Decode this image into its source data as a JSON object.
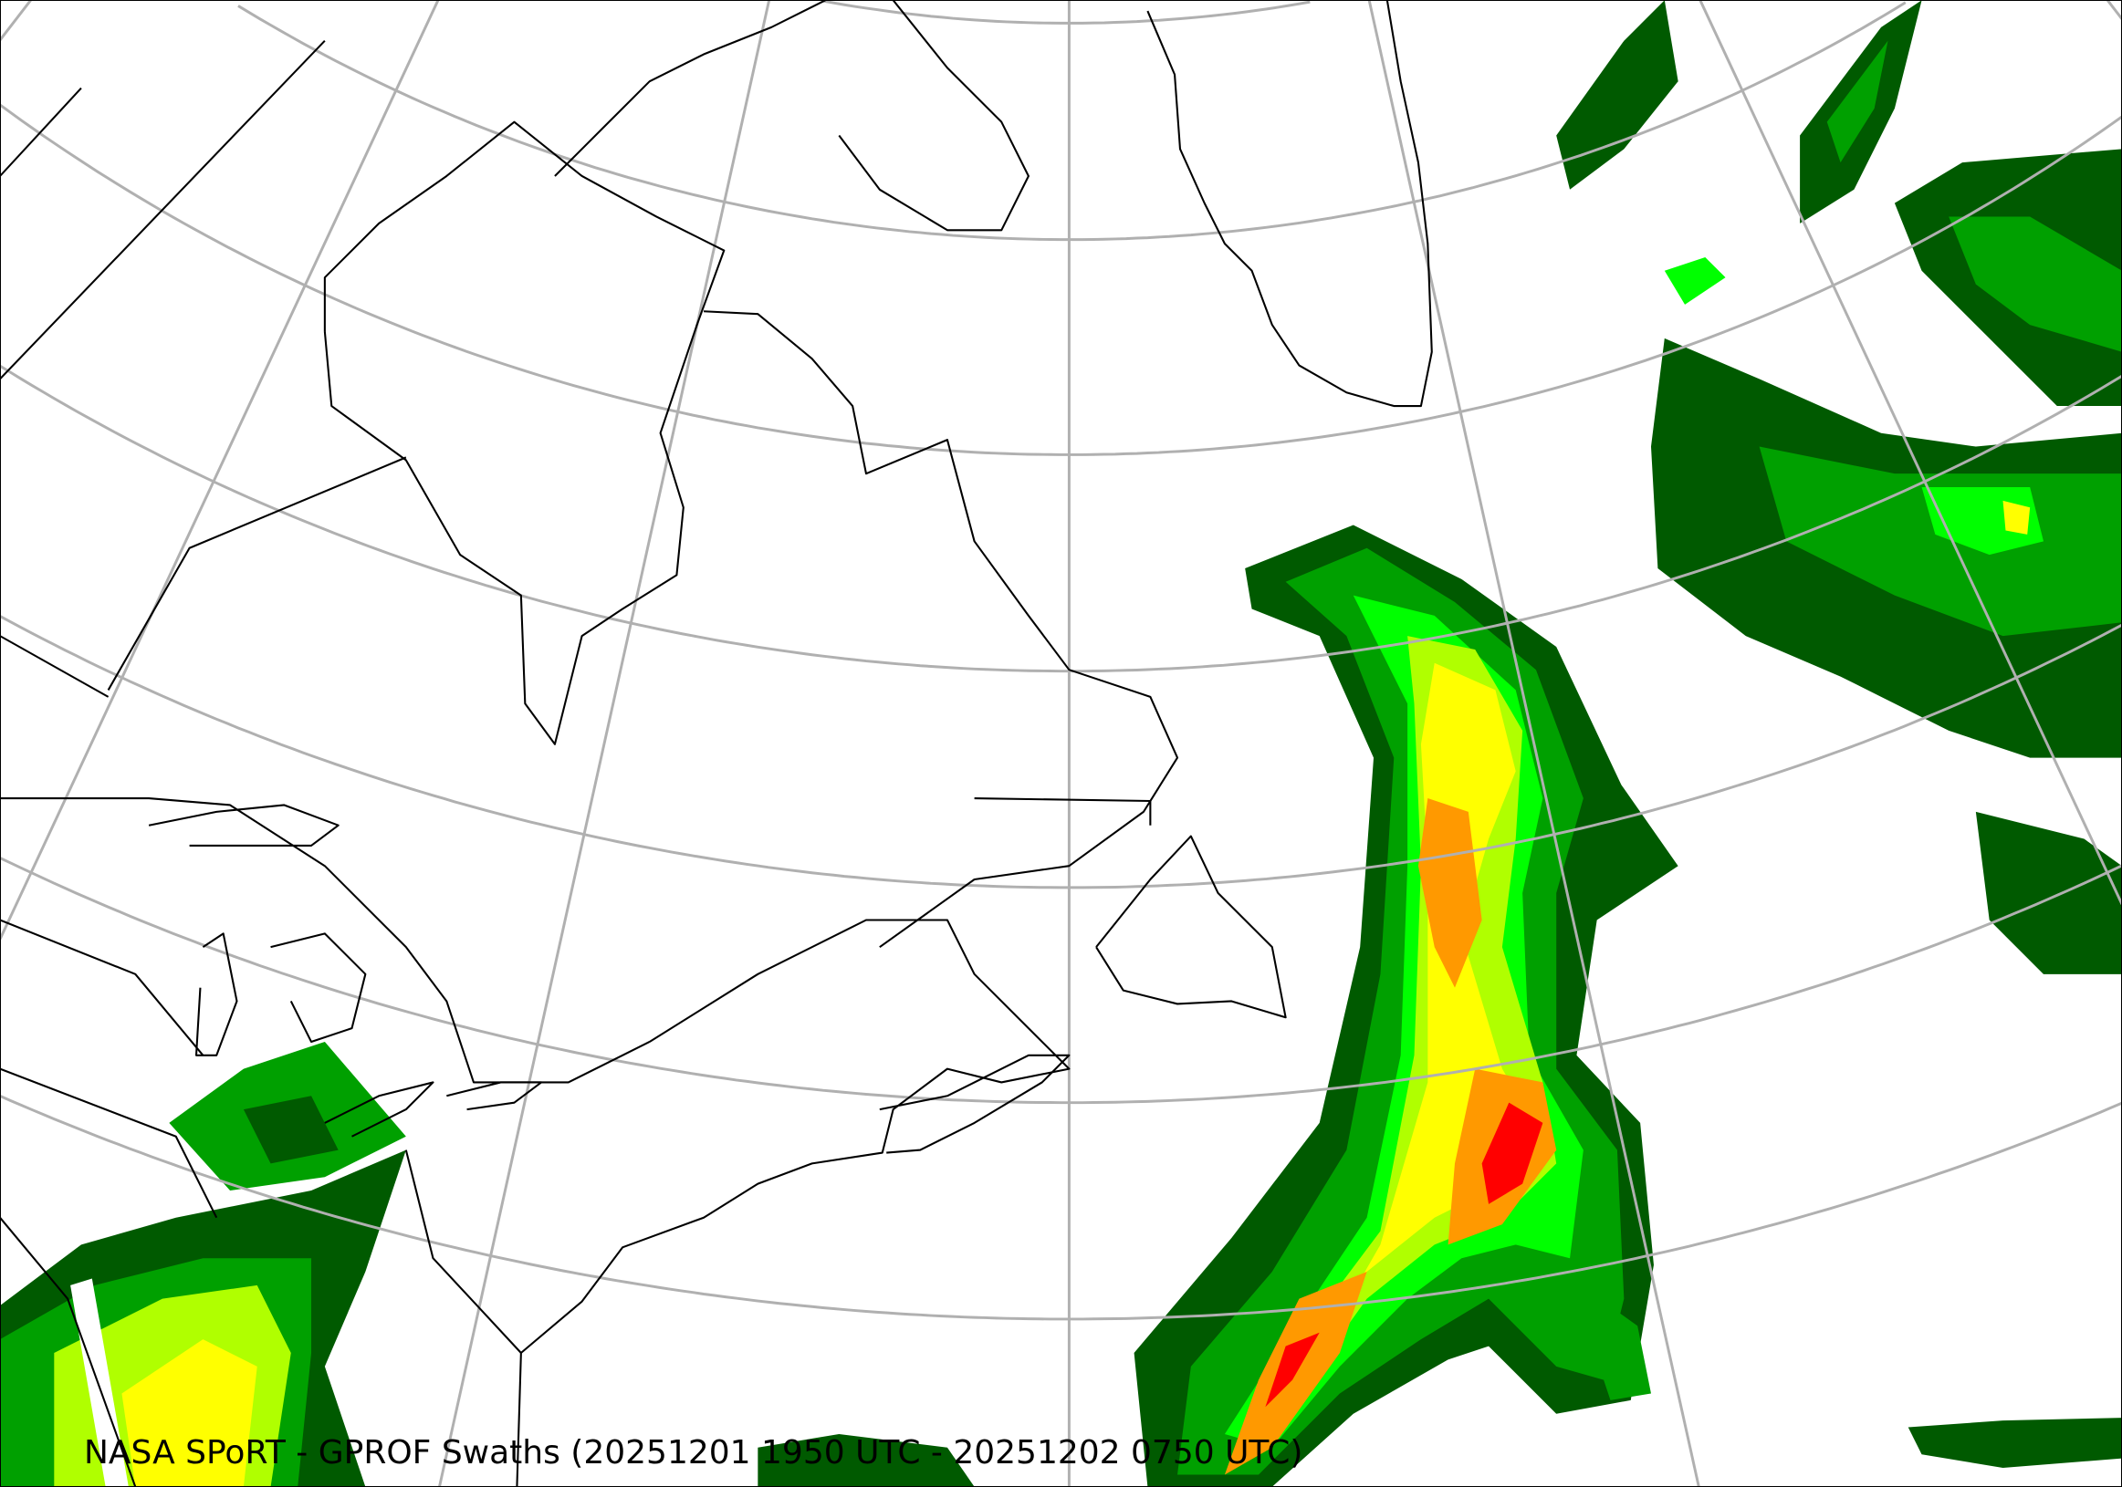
{
  "title": "NASA SPoRT - GPROF Swaths (20251201 1950 UTC - 20251202 0750 UTC)",
  "colors": {
    "graticule": "#b0b0b0",
    "coastline": "#000000",
    "precip_dark_green": "#005a00",
    "precip_green": "#00a000",
    "precip_light_green": "#00ff00",
    "precip_yellow_green": "#b0ff00",
    "precip_yellow": "#ffff00",
    "precip_orange": "#ff9900",
    "precip_red": "#ff0000"
  }
}
